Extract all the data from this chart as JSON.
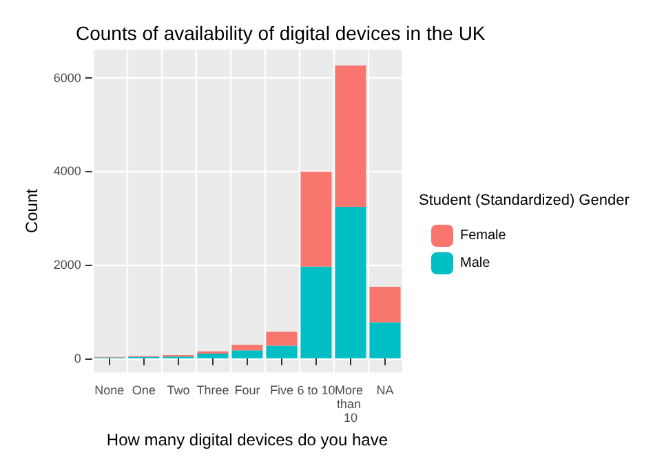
{
  "chart_data": {
    "type": "bar",
    "title": "Counts of availability of digital devices in the UK",
    "xlabel": "How many digital devices do you have",
    "ylabel": "Count",
    "legend_title": "Student (Standardized) Gender",
    "categories": [
      "None",
      "One",
      "Two",
      "Three",
      "Four",
      "Five",
      "6 to 10",
      "More than 10",
      "NA"
    ],
    "stacked": true,
    "legend": "right",
    "grid": true,
    "ylim": [
      -300,
      6600
    ],
    "yticks": [
      0,
      2000,
      4000,
      6000
    ],
    "series": [
      {
        "name": "Male",
        "color": "#00bfc4",
        "values": [
          20,
          30,
          40,
          100,
          170,
          270,
          1960,
          3240,
          770
        ]
      },
      {
        "name": "Female",
        "color": "#f8766d",
        "values": [
          10,
          20,
          30,
          50,
          120,
          300,
          2030,
          3020,
          760
        ]
      }
    ]
  }
}
